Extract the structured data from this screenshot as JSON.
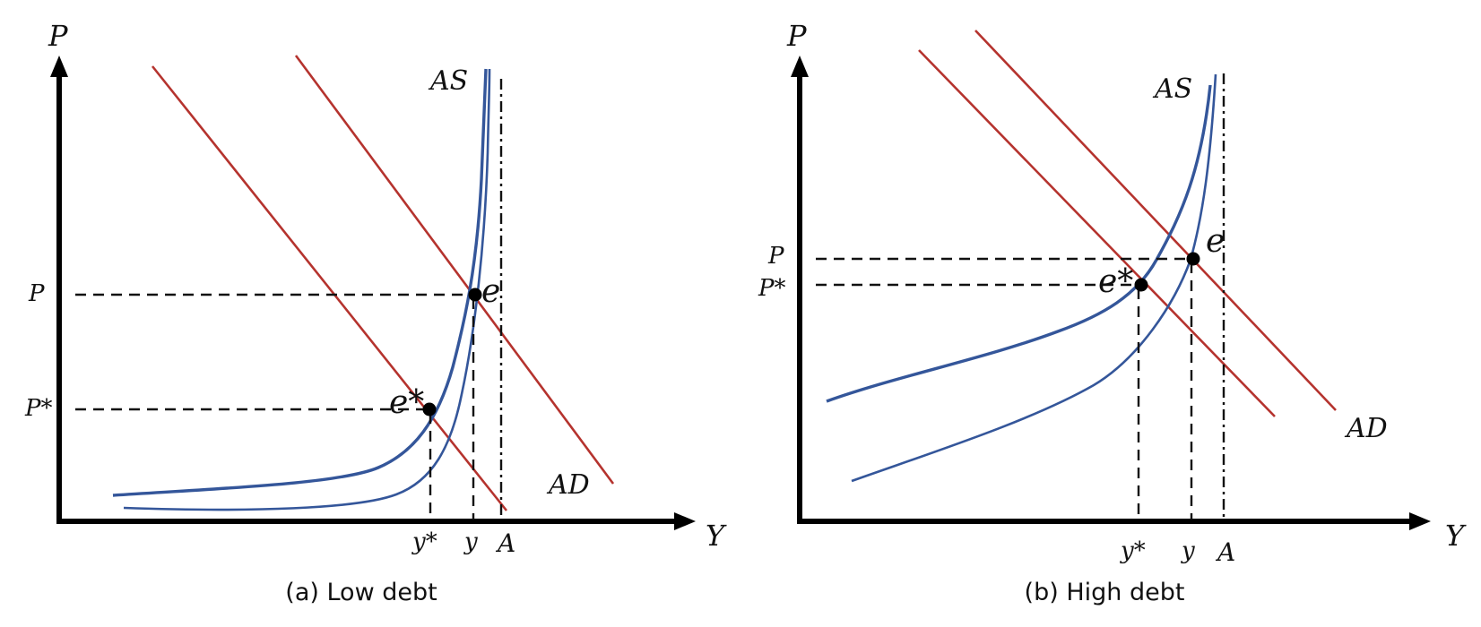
{
  "panels": [
    {
      "caption": "(a) Low debt",
      "y_axis_label": "P",
      "x_axis_label": "Y",
      "as_label": "AS",
      "ad_label": "AD",
      "p_tick": "P",
      "pstar_tick": "P*",
      "ystar_tick": "y*",
      "y_tick": "y",
      "a_tick": "A",
      "e_label": "e",
      "estar_label": "e*"
    },
    {
      "caption": "(b) High debt",
      "y_axis_label": "P",
      "x_axis_label": "Y",
      "as_label": "AS",
      "ad_label": "AD",
      "p_tick": "P",
      "pstar_tick": "P*",
      "ystar_tick": "y*",
      "y_tick": "y",
      "a_tick": "A",
      "e_label": "e",
      "estar_label": "e*"
    }
  ],
  "colors": {
    "ad_curves": "#b5332e",
    "as_curves": "#34569a",
    "axes": "#000000"
  }
}
